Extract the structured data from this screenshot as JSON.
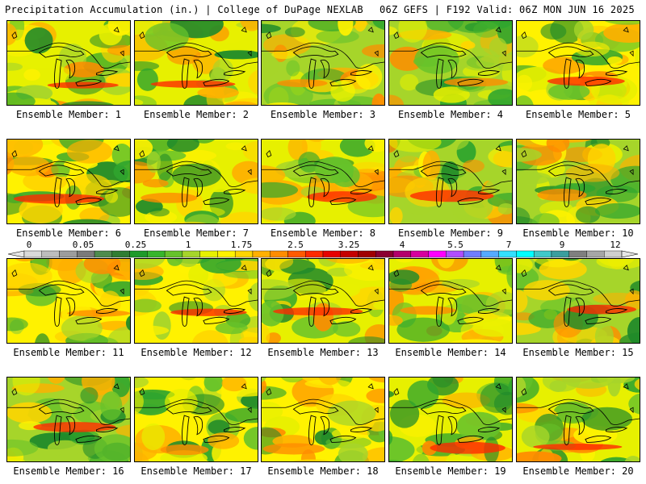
{
  "header": {
    "left": "Precipitation Accumulation (in.) | College of DuPage NEXLAB",
    "right": "06Z GEFS | F192 Valid: 06Z MON JUN 16 2025"
  },
  "colorbar": {
    "tick_labels": [
      "0",
      "0.05",
      "0.25",
      "1",
      "1.75",
      "2.5",
      "3.25",
      "4",
      "5.5",
      "7",
      "9",
      "12"
    ],
    "colors": [
      "#d9d9d9",
      "#bdbdbd",
      "#9c9c9c",
      "#7a7a7a",
      "#4d8b4d",
      "#2f7d32",
      "#1f9a2a",
      "#37b52c",
      "#66c22b",
      "#a6d52a",
      "#e7f000",
      "#fff200",
      "#ffd500",
      "#ffb000",
      "#ff8c00",
      "#ff5a00",
      "#ff2a00",
      "#e60000",
      "#c40000",
      "#9f0000",
      "#8a0030",
      "#b3006b",
      "#d6009e",
      "#ff00ff",
      "#b04dff",
      "#6f7dff",
      "#55aaff",
      "#33e0ff",
      "#00ffff",
      "#40c8c8",
      "#3a9e9e",
      "#7f7f7f",
      "#a6a6a6",
      "#cfcfcf"
    ]
  },
  "members": [
    {
      "label": "Ensemble Member: 1"
    },
    {
      "label": "Ensemble Member: 2"
    },
    {
      "label": "Ensemble Member: 3"
    },
    {
      "label": "Ensemble Member: 4"
    },
    {
      "label": "Ensemble Member: 5"
    },
    {
      "label": "Ensemble Member: 6"
    },
    {
      "label": "Ensemble Member: 7"
    },
    {
      "label": "Ensemble Member: 8"
    },
    {
      "label": "Ensemble Member: 9"
    },
    {
      "label": "Ensemble Member: 10"
    },
    {
      "label": "Ensemble Member: 11"
    },
    {
      "label": "Ensemble Member: 12"
    },
    {
      "label": "Ensemble Member: 13"
    },
    {
      "label": "Ensemble Member: 14"
    },
    {
      "label": "Ensemble Member: 15"
    },
    {
      "label": "Ensemble Member: 16"
    },
    {
      "label": "Ensemble Member: 17"
    },
    {
      "label": "Ensemble Member: 18"
    },
    {
      "label": "Ensemble Member: 19"
    },
    {
      "label": "Ensemble Member: 20"
    }
  ]
}
